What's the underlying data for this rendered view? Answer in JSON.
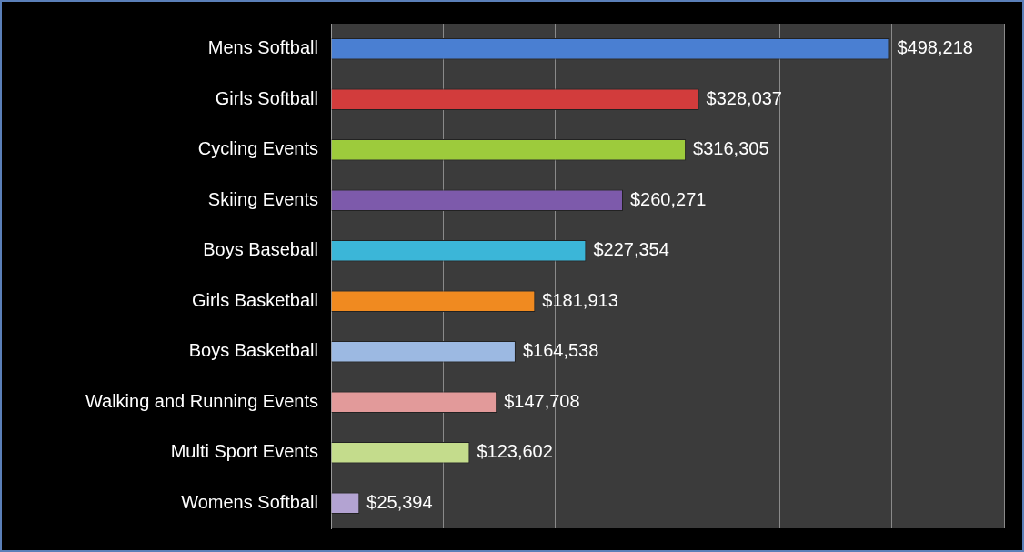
{
  "chart_data": {
    "type": "bar",
    "orientation": "horizontal",
    "categories": [
      "Mens Softball",
      "Girls Softball",
      "Cycling Events",
      "Skiing Events",
      "Boys Baseball",
      "Girls Basketball",
      "Boys Basketball",
      "Walking and Running Events",
      "Multi Sport Events",
      "Womens Softball"
    ],
    "values": [
      498218,
      328037,
      316305,
      260271,
      227354,
      181913,
      164538,
      147708,
      123602,
      25394
    ],
    "colors": [
      "#4a7fd2",
      "#d23c3c",
      "#9dcb3c",
      "#7d5aab",
      "#3bb6d8",
      "#f08a20",
      "#9cb9e2",
      "#e29a9a",
      "#c4dc8c",
      "#b3a3d2"
    ],
    "value_labels": [
      "$498,218",
      "$328,037",
      "$316,305",
      "$260,271",
      "$227,354",
      "$181,913",
      "$164,538",
      "$147,708",
      "$123,602",
      "$25,394"
    ],
    "xlim": [
      0,
      600000
    ],
    "xticks": [
      {
        "value": 0,
        "label": null
      },
      {
        "value": 100000,
        "label": null
      },
      {
        "value": 200000,
        "label": null
      },
      {
        "value": 300000,
        "label": null
      },
      {
        "value": 400000,
        "label": null
      },
      {
        "value": 500000,
        "label": null
      },
      {
        "value": 600000,
        "label": null
      }
    ],
    "tick_labels": "y",
    "grid": "x",
    "legend": false
  }
}
